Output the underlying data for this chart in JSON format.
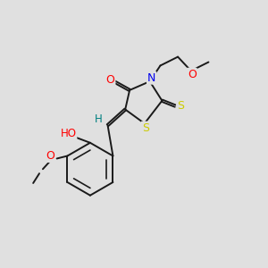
{
  "bg_color": "#e0e0e0",
  "bond_color": "#1a1a1a",
  "bond_lw": 1.4,
  "dbo": 0.012,
  "atom_colors": {
    "O": "#ff0000",
    "N": "#0000ee",
    "S": "#cccc00",
    "H": "#008080",
    "C": "#1a1a1a"
  },
  "fs": 8.5
}
